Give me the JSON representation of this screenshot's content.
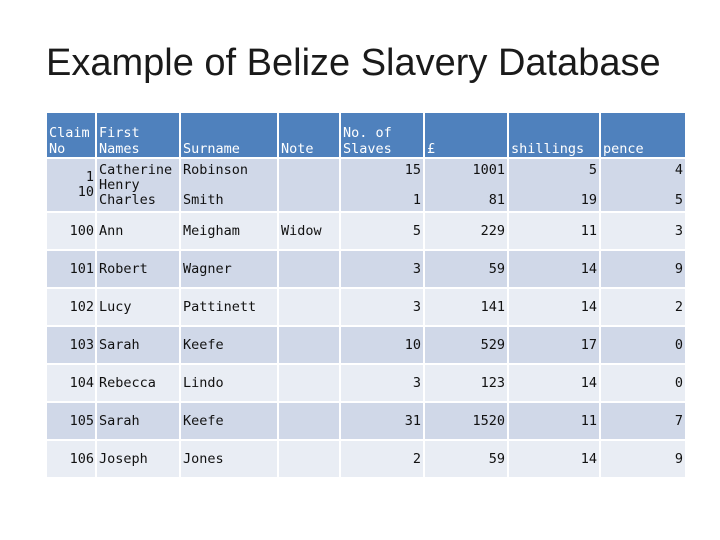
{
  "page": {
    "title": "Example of Belize Slavery Database"
  },
  "table": {
    "headers": [
      "Claim\nNo",
      "First\nNames",
      "Surname",
      "Note",
      "No. of\nSlaves",
      "£",
      "shillings",
      "pence"
    ],
    "rows": [
      [
        "1\n10",
        "Catherine\nHenry\nCharles",
        "Robinson\n\nSmith",
        "",
        "15\n\n1",
        "1001\n\n81",
        "5\n\n19",
        "4\n\n5"
      ],
      [
        "100",
        "Ann",
        "Meigham",
        "Widow",
        "5",
        "229",
        "11",
        "3"
      ],
      [
        "101",
        "Robert",
        "Wagner",
        "",
        "3",
        "59",
        "14",
        "9"
      ],
      [
        "102",
        "Lucy",
        "Pattinett",
        "",
        "3",
        "141",
        "14",
        "2"
      ],
      [
        "103",
        "Sarah",
        "Keefe",
        "",
        "10",
        "529",
        "17",
        "0"
      ],
      [
        "104",
        "Rebecca",
        "Lindo",
        "",
        "3",
        "123",
        "14",
        "0"
      ],
      [
        "105",
        "Sarah",
        "Keefe",
        "",
        "31",
        "1520",
        "11",
        "7"
      ],
      [
        "106",
        "Joseph",
        "Jones",
        "",
        "2",
        "59",
        "14",
        "9"
      ]
    ]
  },
  "colors": {
    "header_bg": "#4f81bd",
    "row_dark": "#d0d8e8",
    "row_light": "#e9edf4"
  }
}
